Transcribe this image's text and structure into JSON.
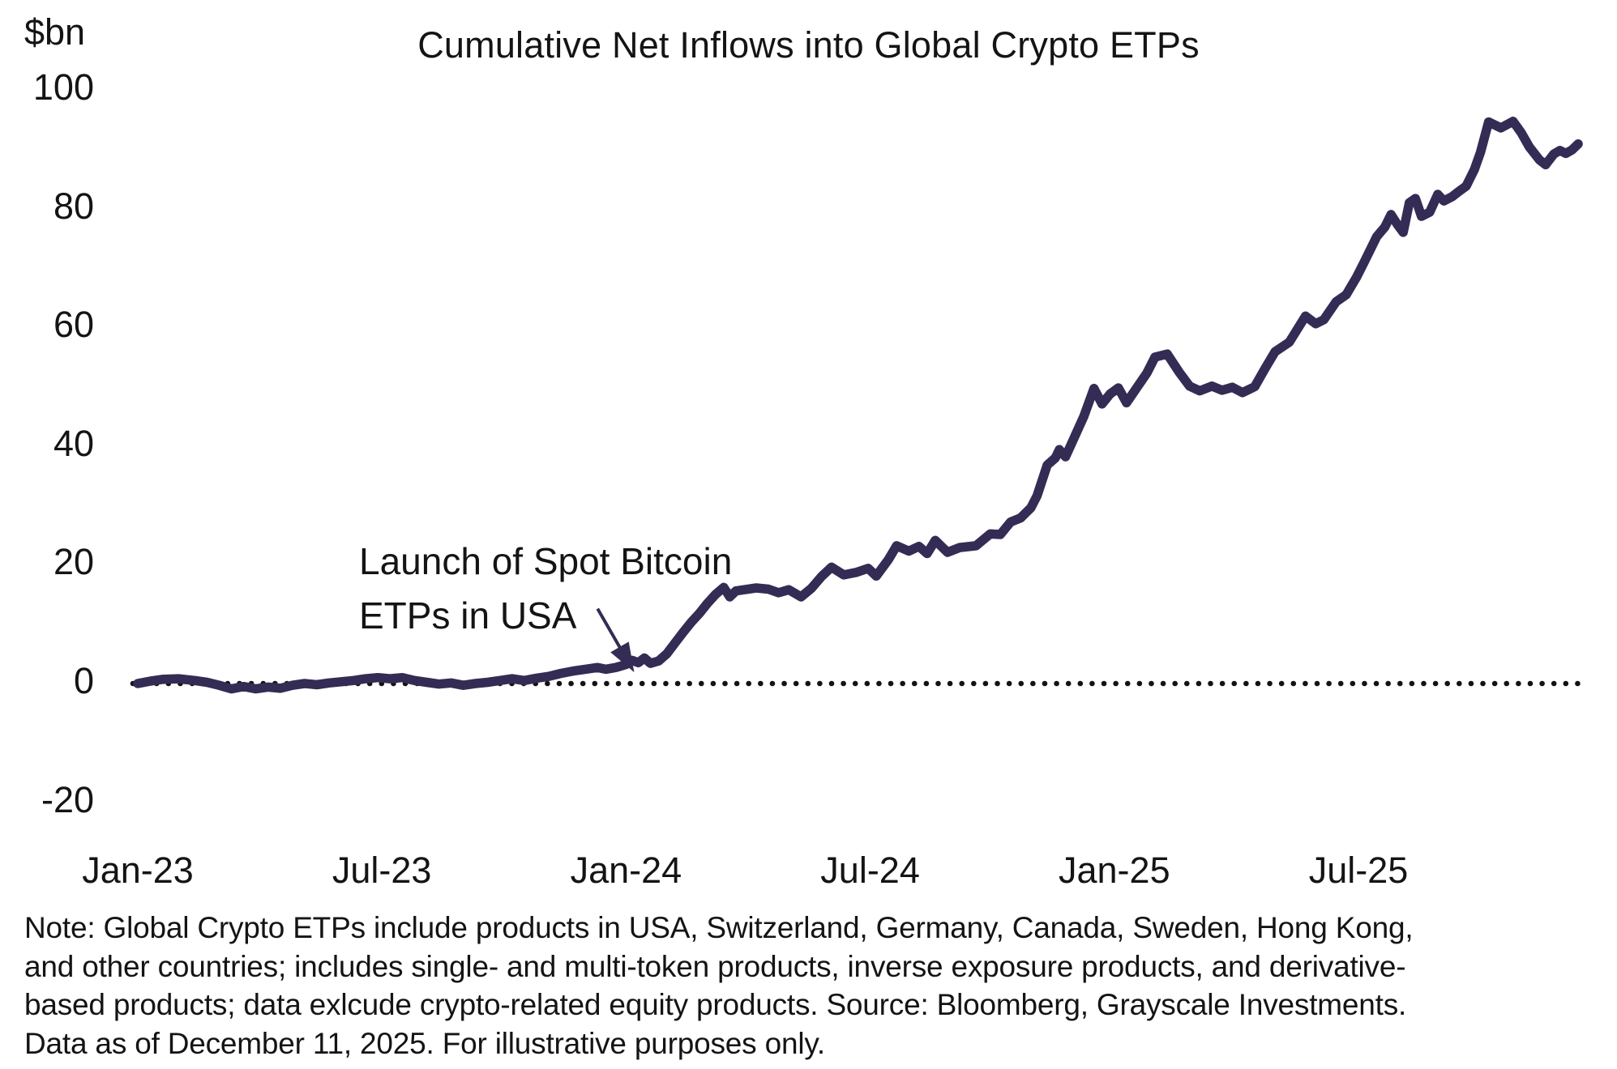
{
  "title": "Cumulative Net Inflows into Global Crypto ETPs",
  "y_axis_unit": "$bn",
  "annotation": {
    "line1": "Launch of Spot Bitcoin",
    "line2": "ETPs in USA"
  },
  "note_lines": [
    "Note: Global Crypto ETPs include products in USA, Switzerland, Germany, Canada, Sweden, Hong Kong,",
    "and other countries; includes single- and multi-token products, inverse exposure products, and derivative-",
    "based products; data exlcude crypto-related equity products. Source: Bloomberg, Grayscale Investments.",
    "Data as of December 11, 2025. For illustrative purposes only."
  ],
  "colors": {
    "line": "#342C55",
    "text": "#141414",
    "zero_dots": "#131313",
    "arrow": "#342C55"
  },
  "chart_data": {
    "type": "line",
    "title": "Cumulative Net Inflows into Global Crypto ETPs",
    "xlabel": "",
    "ylabel": "$bn",
    "ylim": [
      -20,
      100
    ],
    "grid": false,
    "legend_position": "none",
    "zero_line_style": "dotted",
    "x_unit": "months_since_jan_2023",
    "yticks": [
      100,
      80,
      60,
      40,
      20,
      0,
      -20
    ],
    "xticks": [
      {
        "label": "Jan-23",
        "month": 0
      },
      {
        "label": "Jul-23",
        "month": 6
      },
      {
        "label": "Jan-24",
        "month": 12
      },
      {
        "label": "Jul-24",
        "month": 18
      },
      {
        "label": "Jan-25",
        "month": 24
      },
      {
        "label": "Jul-25",
        "month": 30
      }
    ],
    "annotation": {
      "text": "Launch of Spot Bitcoin ETPs in USA",
      "arrow_from": [
        11.3,
        12.6
      ],
      "arrow_to": [
        12.2,
        1.9
      ]
    },
    "series": [
      {
        "name": "Cumulative net inflows into global crypto ETPs ($bn)",
        "points": [
          [
            0,
            0
          ],
          [
            0.3,
            0.4
          ],
          [
            0.6,
            0.7
          ],
          [
            1.0,
            0.8
          ],
          [
            1.4,
            0.5
          ],
          [
            1.7,
            0.2
          ],
          [
            2.0,
            -0.3
          ],
          [
            2.3,
            -0.9
          ],
          [
            2.6,
            -0.5
          ],
          [
            2.9,
            -0.9
          ],
          [
            3.2,
            -0.6
          ],
          [
            3.5,
            -0.8
          ],
          [
            3.8,
            -0.3
          ],
          [
            4.1,
            0.0
          ],
          [
            4.4,
            -0.2
          ],
          [
            4.7,
            0.1
          ],
          [
            5.0,
            0.3
          ],
          [
            5.3,
            0.5
          ],
          [
            5.6,
            0.8
          ],
          [
            5.9,
            1.0
          ],
          [
            6.2,
            0.8
          ],
          [
            6.5,
            1.0
          ],
          [
            6.8,
            0.5
          ],
          [
            7.1,
            0.2
          ],
          [
            7.4,
            -0.1
          ],
          [
            7.7,
            0.1
          ],
          [
            8.0,
            -0.3
          ],
          [
            8.3,
            0.0
          ],
          [
            8.6,
            0.2
          ],
          [
            8.9,
            0.5
          ],
          [
            9.2,
            0.8
          ],
          [
            9.5,
            0.5
          ],
          [
            9.8,
            0.9
          ],
          [
            10.1,
            1.2
          ],
          [
            10.4,
            1.7
          ],
          [
            10.7,
            2.1
          ],
          [
            11.0,
            2.4
          ],
          [
            11.3,
            2.7
          ],
          [
            11.5,
            2.4
          ],
          [
            11.75,
            2.7
          ],
          [
            12.0,
            3.2
          ],
          [
            12.15,
            3.9
          ],
          [
            12.3,
            3.5
          ],
          [
            12.45,
            4.3
          ],
          [
            12.6,
            3.4
          ],
          [
            12.8,
            3.8
          ],
          [
            13.0,
            5.0
          ],
          [
            13.2,
            6.8
          ],
          [
            13.4,
            8.6
          ],
          [
            13.6,
            10.3
          ],
          [
            13.8,
            11.8
          ],
          [
            14.0,
            13.5
          ],
          [
            14.2,
            15.0
          ],
          [
            14.4,
            16.2
          ],
          [
            14.55,
            14.6
          ],
          [
            14.7,
            15.6
          ],
          [
            14.9,
            15.8
          ],
          [
            15.2,
            16.1
          ],
          [
            15.5,
            15.9
          ],
          [
            15.75,
            15.3
          ],
          [
            16.0,
            15.8
          ],
          [
            16.3,
            14.6
          ],
          [
            16.55,
            16.0
          ],
          [
            16.8,
            18.0
          ],
          [
            17.05,
            19.6
          ],
          [
            17.35,
            18.3
          ],
          [
            17.65,
            18.7
          ],
          [
            17.95,
            19.4
          ],
          [
            18.15,
            18.1
          ],
          [
            18.45,
            20.9
          ],
          [
            18.65,
            23.2
          ],
          [
            18.95,
            22.3
          ],
          [
            19.2,
            23.1
          ],
          [
            19.4,
            21.9
          ],
          [
            19.6,
            24.1
          ],
          [
            19.9,
            22.1
          ],
          [
            20.2,
            22.9
          ],
          [
            20.6,
            23.2
          ],
          [
            20.95,
            25.2
          ],
          [
            21.2,
            25.1
          ],
          [
            21.45,
            27.2
          ],
          [
            21.7,
            27.9
          ],
          [
            21.95,
            29.6
          ],
          [
            22.1,
            31.6
          ],
          [
            22.35,
            36.8
          ],
          [
            22.55,
            38.0
          ],
          [
            22.65,
            39.4
          ],
          [
            22.8,
            38.2
          ],
          [
            23.0,
            41.2
          ],
          [
            23.25,
            45.0
          ],
          [
            23.5,
            49.7
          ],
          [
            23.7,
            47.1
          ],
          [
            23.9,
            48.8
          ],
          [
            24.1,
            49.8
          ],
          [
            24.3,
            47.3
          ],
          [
            24.55,
            49.8
          ],
          [
            24.8,
            52.3
          ],
          [
            25.0,
            55.0
          ],
          [
            25.3,
            55.5
          ],
          [
            25.6,
            52.4
          ],
          [
            25.85,
            50.1
          ],
          [
            26.1,
            49.3
          ],
          [
            26.4,
            50.1
          ],
          [
            26.65,
            49.4
          ],
          [
            26.9,
            49.9
          ],
          [
            27.15,
            49.0
          ],
          [
            27.45,
            50.0
          ],
          [
            27.7,
            53.0
          ],
          [
            27.95,
            55.9
          ],
          [
            28.3,
            57.5
          ],
          [
            28.7,
            61.9
          ],
          [
            28.95,
            60.6
          ],
          [
            29.15,
            61.3
          ],
          [
            29.45,
            64.3
          ],
          [
            29.7,
            65.5
          ],
          [
            29.95,
            68.4
          ],
          [
            30.15,
            71.1
          ],
          [
            30.45,
            75.3
          ],
          [
            30.65,
            76.9
          ],
          [
            30.8,
            79.0
          ],
          [
            30.95,
            77.4
          ],
          [
            31.1,
            76.0
          ],
          [
            31.25,
            81.0
          ],
          [
            31.4,
            81.7
          ],
          [
            31.55,
            78.7
          ],
          [
            31.75,
            79.4
          ],
          [
            31.95,
            82.4
          ],
          [
            32.1,
            81.3
          ],
          [
            32.3,
            82.0
          ],
          [
            32.45,
            82.8
          ],
          [
            32.65,
            83.8
          ],
          [
            32.85,
            86.6
          ],
          [
            33.0,
            89.5
          ],
          [
            33.2,
            94.6
          ],
          [
            33.5,
            93.6
          ],
          [
            33.8,
            94.7
          ],
          [
            34.0,
            92.8
          ],
          [
            34.2,
            90.4
          ],
          [
            34.45,
            88.2
          ],
          [
            34.6,
            87.4
          ],
          [
            34.8,
            89.2
          ],
          [
            34.95,
            89.8
          ],
          [
            35.1,
            89.3
          ],
          [
            35.25,
            89.9
          ],
          [
            35.4,
            90.9
          ]
        ]
      }
    ]
  }
}
